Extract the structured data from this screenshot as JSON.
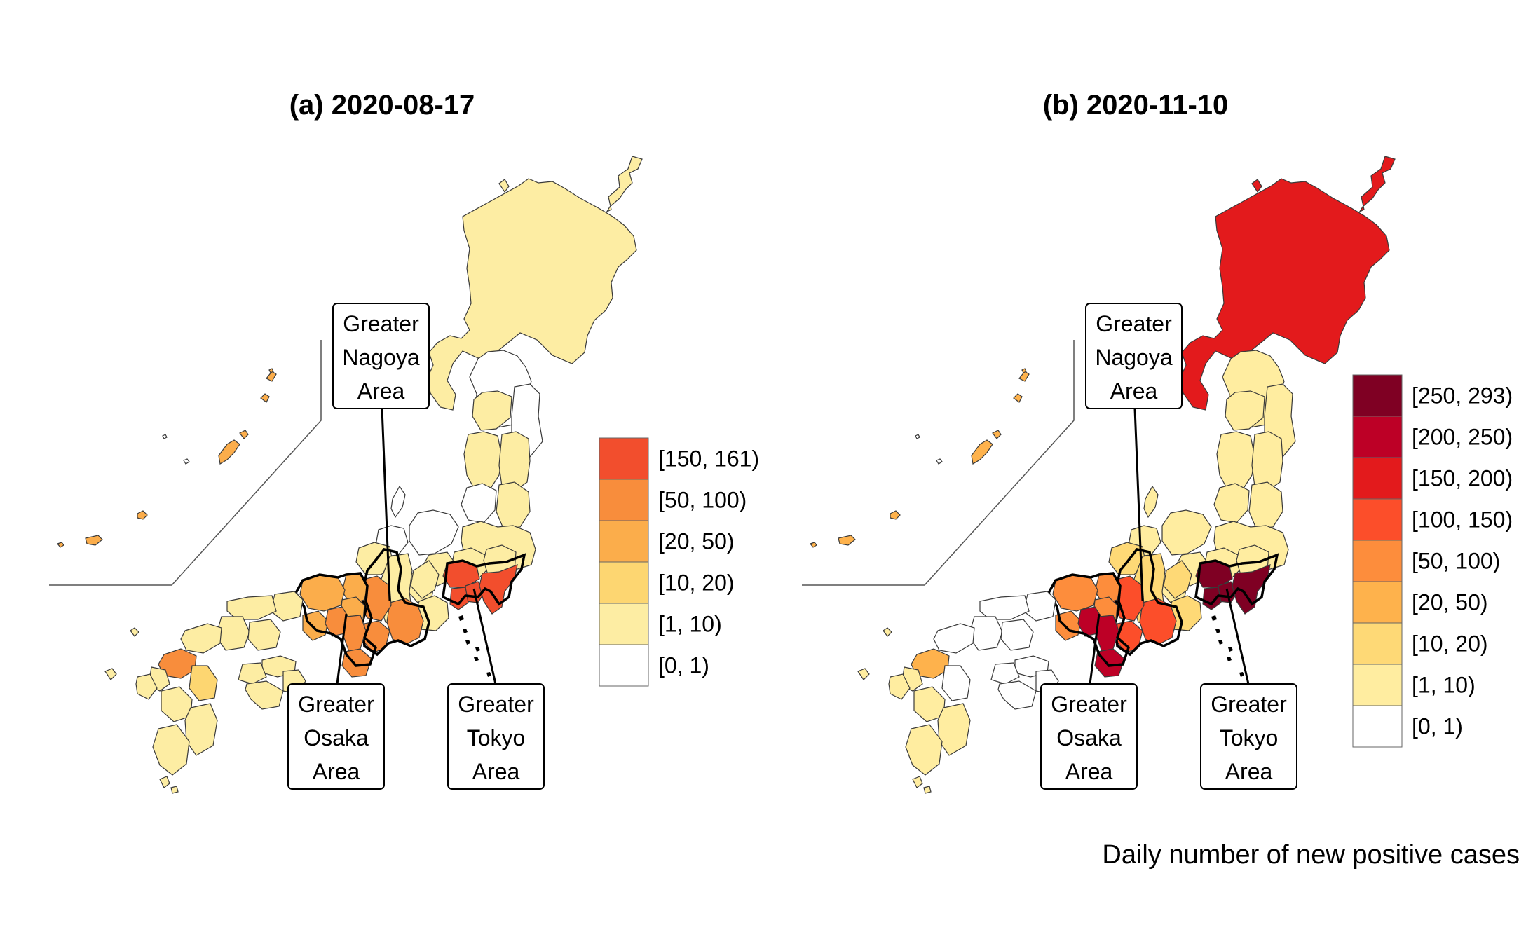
{
  "figure": {
    "caption": "Daily number of new positive cases"
  },
  "maps": [
    {
      "title": "(a) 2020-08-17",
      "legend": [
        {
          "label": "[150, 161)",
          "color": "#f24e2d"
        },
        {
          "label": "[50, 100)",
          "color": "#f88d3c"
        },
        {
          "label": "[20, 50)",
          "color": "#fbad4b"
        },
        {
          "label": "[10, 20)",
          "color": "#fdd671"
        },
        {
          "label": "[1, 10)",
          "color": "#fdeda3"
        },
        {
          "label": "[0, 1)",
          "color": "#ffffff"
        }
      ],
      "regions": {
        "hokkaido": "#fdeda3",
        "tohoku_north": "#ffffff",
        "tohoku_south": "#fdeda3",
        "hokuriku": "#ffffff",
        "kanto": "#fdeda3",
        "tokyo": "#f24e2d",
        "chubu": "#fdeda3",
        "nagoya": "#f88d3c",
        "kinki": "#fbad4b",
        "osaka": "#f88d3c",
        "chugoku": "#fdeda3",
        "shikoku": "#fdeda3",
        "fukuoka": "#f88d3c",
        "kyushu": "#fdeda3",
        "kyushu_south": "#fdd671",
        "okinawa": "#fbad4b"
      },
      "callouts": [
        {
          "label": "Greater Nagoya Area",
          "lines": [
            "Greater",
            "Nagoya",
            "Area"
          ]
        },
        {
          "label": "Greater Osaka Area",
          "lines": [
            "Greater",
            "Osaka",
            "Area"
          ]
        },
        {
          "label": "Greater Tokyo Area",
          "lines": [
            "Greater",
            "Tokyo",
            "Area"
          ]
        }
      ]
    },
    {
      "title": "(b) 2020-11-10",
      "legend": [
        {
          "label": "[250, 293)",
          "color": "#7f0023"
        },
        {
          "label": "[200, 250)",
          "color": "#bd0026"
        },
        {
          "label": "[150, 200)",
          "color": "#e31a1c"
        },
        {
          "label": "[100, 150)",
          "color": "#fc4e2a"
        },
        {
          "label": "[50, 100)",
          "color": "#fd8d3c"
        },
        {
          "label": "[20, 50)",
          "color": "#feb24c"
        },
        {
          "label": "[10, 20)",
          "color": "#fed976"
        },
        {
          "label": "[1, 10)",
          "color": "#ffeda0"
        },
        {
          "label": "[0, 1)",
          "color": "#ffffff"
        }
      ],
      "regions": {
        "hokkaido": "#e31a1c",
        "tohoku_north": "#ffeda0",
        "tohoku_south": "#ffeda0",
        "hokuriku": "#ffeda0",
        "kanto": "#ffeda0",
        "tokyo": "#7f0023",
        "chubu": "#fed976",
        "nagoya": "#fc4e2a",
        "kinki": "#fd8d3c",
        "osaka": "#bd0026",
        "chugoku": "#ffffff",
        "shikoku": "#ffffff",
        "fukuoka": "#feb24c",
        "kyushu": "#ffeda0",
        "kyushu_south": "#ffffff",
        "okinawa": "#feb24c"
      },
      "callouts": [
        {
          "label": "Greater Nagoya Area",
          "lines": [
            "Greater",
            "Nagoya",
            "Area"
          ]
        },
        {
          "label": "Greater Osaka Area",
          "lines": [
            "Greater",
            "Osaka",
            "Area"
          ]
        },
        {
          "label": "Greater Tokyo Area",
          "lines": [
            "Greater",
            "Tokyo",
            "Area"
          ]
        }
      ]
    }
  ]
}
